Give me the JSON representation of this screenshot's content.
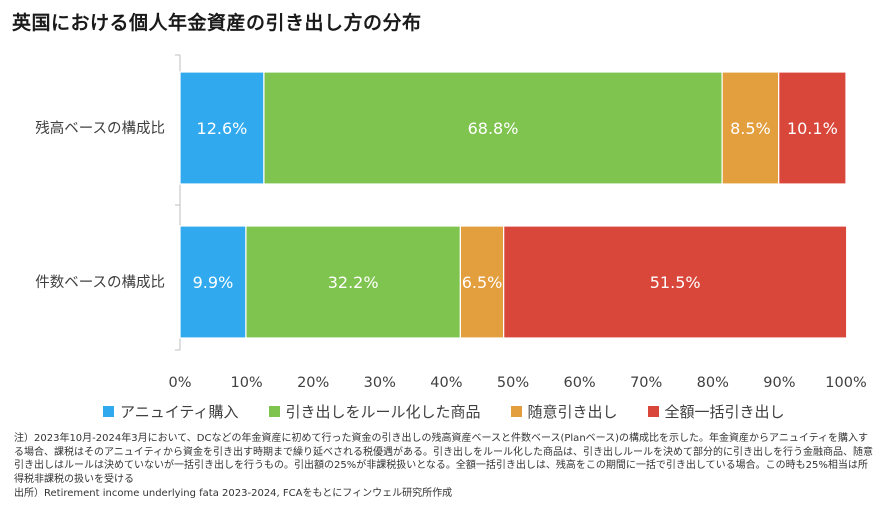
{
  "title": "英国における個人年金資産の引き出し方の分布",
  "chart_data": {
    "type": "bar",
    "orientation": "horizontal",
    "stacked": true,
    "categories": [
      "残高ベースの構成比",
      "件数ベースの構成比"
    ],
    "series": [
      {
        "name": "アニュイティ購入",
        "color": "#30A9EE",
        "values": [
          12.6,
          9.9
        ]
      },
      {
        "name": "引き出しをルール化した商品",
        "color": "#80C450",
        "values": [
          68.8,
          32.2
        ]
      },
      {
        "name": "随意引き出し",
        "color": "#E39E3E",
        "values": [
          8.5,
          6.5
        ]
      },
      {
        "name": "全額一括引き出し",
        "color": "#D9473A",
        "values": [
          10.1,
          51.5
        ]
      }
    ],
    "xlim": [
      0,
      100
    ],
    "xticks": [
      "0%",
      "10%",
      "20%",
      "30%",
      "40%",
      "50%",
      "60%",
      "70%",
      "80%",
      "90%",
      "100%"
    ],
    "value_labels": [
      [
        "12.6%",
        "68.8%",
        "8.5%",
        "10.1%"
      ],
      [
        "9.9%",
        "32.2%",
        "6.5%",
        "51.5%"
      ]
    ],
    "grid": false,
    "legend_position": "bottom"
  },
  "notes": {
    "note": "注）2023年10月-2024年3月において、DCなどの年金資産に初めて行った資金の引き出しの残高資産ベースと件数ベース(Planベース)の構成比を示した。年金資産からアニュイティを購入する場合、課税はそのアニュイティから資金を引き出す時期まで繰り延べされる税優遇がある。引き出しをルール化した商品は、引き出しルールを決めて部分的に引き出しを行う金融商品、随意引き出しはルールは決めていないが一括引き出しを行うもの。引出額の25%が非課税扱いとなる。全額一括引き出しは、残高をこの期間に一括で引き出している場合。この時も25%相当は所得税非課税の扱いを受ける",
    "source": "出所）Retirement income underlying fata 2023-2024, FCAをもとにフィンウェル研究所作成"
  }
}
